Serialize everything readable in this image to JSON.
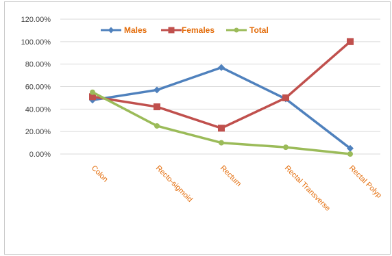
{
  "chart_data": {
    "type": "line",
    "title": "",
    "xlabel": "",
    "ylabel": "",
    "categories": [
      "Colon",
      "Recto-sigmoid",
      "Rectum",
      "Rectal Transverse",
      "Rectal Polyp"
    ],
    "ylim": [
      0,
      1.2
    ],
    "yticks": [
      "0.00%",
      "20.00%",
      "40.00%",
      "60.00%",
      "80.00%",
      "100.00%",
      "120.00%"
    ],
    "grid": true,
    "legend_position": "top",
    "series": [
      {
        "name": "Males",
        "values": [
          0.48,
          0.57,
          0.77,
          0.49,
          0.05
        ],
        "color": "#4f81bd",
        "marker": "diamond"
      },
      {
        "name": "Females",
        "values": [
          0.51,
          0.42,
          0.23,
          0.5,
          1.0
        ],
        "color": "#c0504d",
        "marker": "square"
      },
      {
        "name": "Total",
        "values": [
          0.55,
          0.25,
          0.1,
          0.06,
          0.0
        ],
        "color": "#9bbb59",
        "marker": "circle"
      }
    ]
  }
}
